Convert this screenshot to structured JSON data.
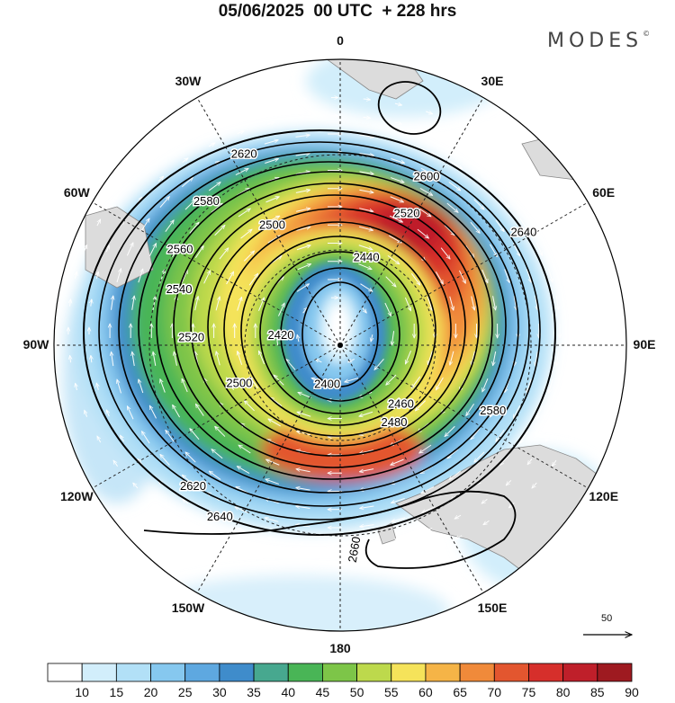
{
  "title": "05/06/2025  00 UTC  + 228 hrs",
  "brand": {
    "name": "MODES",
    "mark": "©"
  },
  "meridian_labels": [
    {
      "text": "0",
      "angle": 0
    },
    {
      "text": "30E",
      "angle": 30
    },
    {
      "text": "60E",
      "angle": 60
    },
    {
      "text": "90E",
      "angle": 90
    },
    {
      "text": "120E",
      "angle": 120
    },
    {
      "text": "150E",
      "angle": 150
    },
    {
      "text": "180",
      "angle": 180
    },
    {
      "text": "150W",
      "angle": 210
    },
    {
      "text": "120W",
      "angle": 240
    },
    {
      "text": "90W",
      "angle": 270
    },
    {
      "text": "60W",
      "angle": 300
    },
    {
      "text": "30W",
      "angle": 330
    }
  ],
  "contour_labels": [
    "2640",
    "2620",
    "2600",
    "2580",
    "2560",
    "2540",
    "2520",
    "2500",
    "2480",
    "2460",
    "2440",
    "2420",
    "2400",
    "2660"
  ],
  "colorbar": {
    "ticks": [
      "10",
      "15",
      "20",
      "25",
      "30",
      "35",
      "40",
      "45",
      "50",
      "55",
      "60",
      "65",
      "70",
      "75",
      "80",
      "85",
      "90"
    ],
    "colors": [
      "#ffffff",
      "#d2eefb",
      "#b2e0f7",
      "#86c8ef",
      "#5ea8e0",
      "#3f8ccb",
      "#47a88f",
      "#49b556",
      "#7dc548",
      "#bdd94c",
      "#f5e35a",
      "#f5b447",
      "#f08a3a",
      "#e3562f",
      "#d62f2b",
      "#bf1f2a",
      "#9e1a20"
    ]
  },
  "reference_vector": {
    "value": "50"
  },
  "colors": {
    "contour": "#000000",
    "grid": "#222222",
    "land": "#dddddd",
    "vectors": "#ffffff"
  }
}
